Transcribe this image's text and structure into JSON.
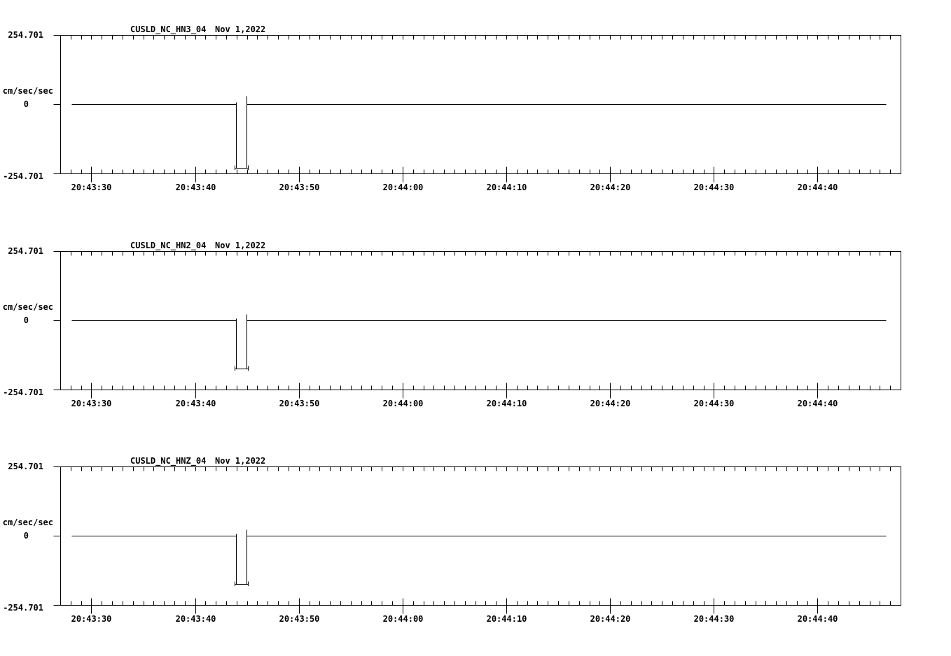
{
  "page": {
    "background": "#ffffff",
    "trace_color": "#000000"
  },
  "chart_data": [
    {
      "type": "line",
      "station": "CUSLD_NC_HN3_04",
      "date": "Nov 1,2022",
      "ylabel": "cm/sec/sec",
      "ylim": [
        -254.701,
        254.701
      ],
      "y_tick_labels": {
        "max": "254.701",
        "zero": "0",
        "min": "-254.701"
      },
      "x_axis": {
        "t_start": 27,
        "t_end": 108,
        "minor_tick_seconds": 1,
        "major_ticks": [
          {
            "t": 30,
            "label": "20:43:30"
          },
          {
            "t": 40,
            "label": "20:43:40"
          },
          {
            "t": 50,
            "label": "20:43:50"
          },
          {
            "t": 60,
            "label": "20:44:00"
          },
          {
            "t": 70,
            "label": "20:44:10"
          },
          {
            "t": 80,
            "label": "20:44:20"
          },
          {
            "t": 90,
            "label": "20:44:30"
          },
          {
            "t": 100,
            "label": "20:44:40"
          }
        ]
      },
      "series": {
        "baseline": 0,
        "t_trace_start": 28.1,
        "t_trace_end": 106.6,
        "pulse": {
          "t_fall": 43.93,
          "t_rise": 44.94,
          "min": -234,
          "pre_spike": 8,
          "overshoot": 31
        }
      }
    },
    {
      "type": "line",
      "station": "CUSLD_NC_HN2_04",
      "date": "Nov 1,2022",
      "ylabel": "cm/sec/sec",
      "ylim": [
        -254.701,
        254.701
      ],
      "y_tick_labels": {
        "max": "254.701",
        "zero": "0",
        "min": "-254.701"
      },
      "x_axis": {
        "t_start": 27,
        "t_end": 108,
        "minor_tick_seconds": 1,
        "major_ticks": [
          {
            "t": 30,
            "label": "20:43:30"
          },
          {
            "t": 40,
            "label": "20:43:40"
          },
          {
            "t": 50,
            "label": "20:43:50"
          },
          {
            "t": 60,
            "label": "20:44:00"
          },
          {
            "t": 70,
            "label": "20:44:10"
          },
          {
            "t": 80,
            "label": "20:44:20"
          },
          {
            "t": 90,
            "label": "20:44:30"
          },
          {
            "t": 100,
            "label": "20:44:40"
          }
        ]
      },
      "series": {
        "baseline": 0,
        "t_trace_start": 28.1,
        "t_trace_end": 106.6,
        "pulse": {
          "t_fall": 43.93,
          "t_rise": 44.94,
          "min": -178,
          "pre_spike": 8,
          "overshoot": 24
        }
      }
    },
    {
      "type": "line",
      "station": "CUSLD_NC_HNZ_04",
      "date": "Nov 1,2022",
      "ylabel": "cm/sec/sec",
      "ylim": [
        -254.701,
        254.701
      ],
      "y_tick_labels": {
        "max": "254.701",
        "zero": "0",
        "min": "-254.701"
      },
      "x_axis": {
        "t_start": 27,
        "t_end": 108,
        "minor_tick_seconds": 1,
        "major_ticks": [
          {
            "t": 30,
            "label": "20:43:30"
          },
          {
            "t": 40,
            "label": "20:43:40"
          },
          {
            "t": 50,
            "label": "20:43:50"
          },
          {
            "t": 60,
            "label": "20:44:00"
          },
          {
            "t": 70,
            "label": "20:44:10"
          },
          {
            "t": 80,
            "label": "20:44:20"
          },
          {
            "t": 90,
            "label": "20:44:30"
          },
          {
            "t": 100,
            "label": "20:44:40"
          }
        ]
      },
      "series": {
        "baseline": 0,
        "t_trace_start": 28.1,
        "t_trace_end": 106.6,
        "pulse": {
          "t_fall": 43.93,
          "t_rise": 44.94,
          "min": -178,
          "pre_spike": 8,
          "overshoot": 24
        }
      }
    }
  ]
}
